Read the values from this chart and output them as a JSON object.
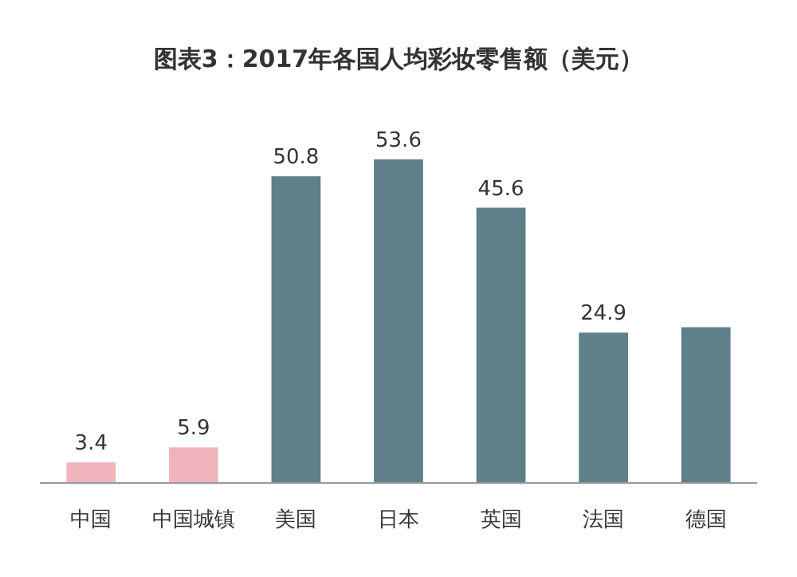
{
  "chart_data": {
    "type": "bar",
    "title": "图表3：2017年各国人均彩妆零售额（美元）",
    "categories": [
      "中国",
      "中国城镇",
      "美国",
      "日本",
      "英国",
      "法国",
      "德国"
    ],
    "values": [
      3.4,
      5.9,
      50.8,
      53.6,
      45.6,
      24.9,
      25.8
    ],
    "value_labels": [
      "3.4",
      "5.9",
      "50.8",
      "53.6",
      "45.6",
      "24.9",
      null
    ],
    "colors": [
      "#f0b4bd",
      "#f0b4bd",
      "#5f7f89",
      "#5f7f89",
      "#5f7f89",
      "#5f7f89",
      "#5f7f89"
    ]
  }
}
